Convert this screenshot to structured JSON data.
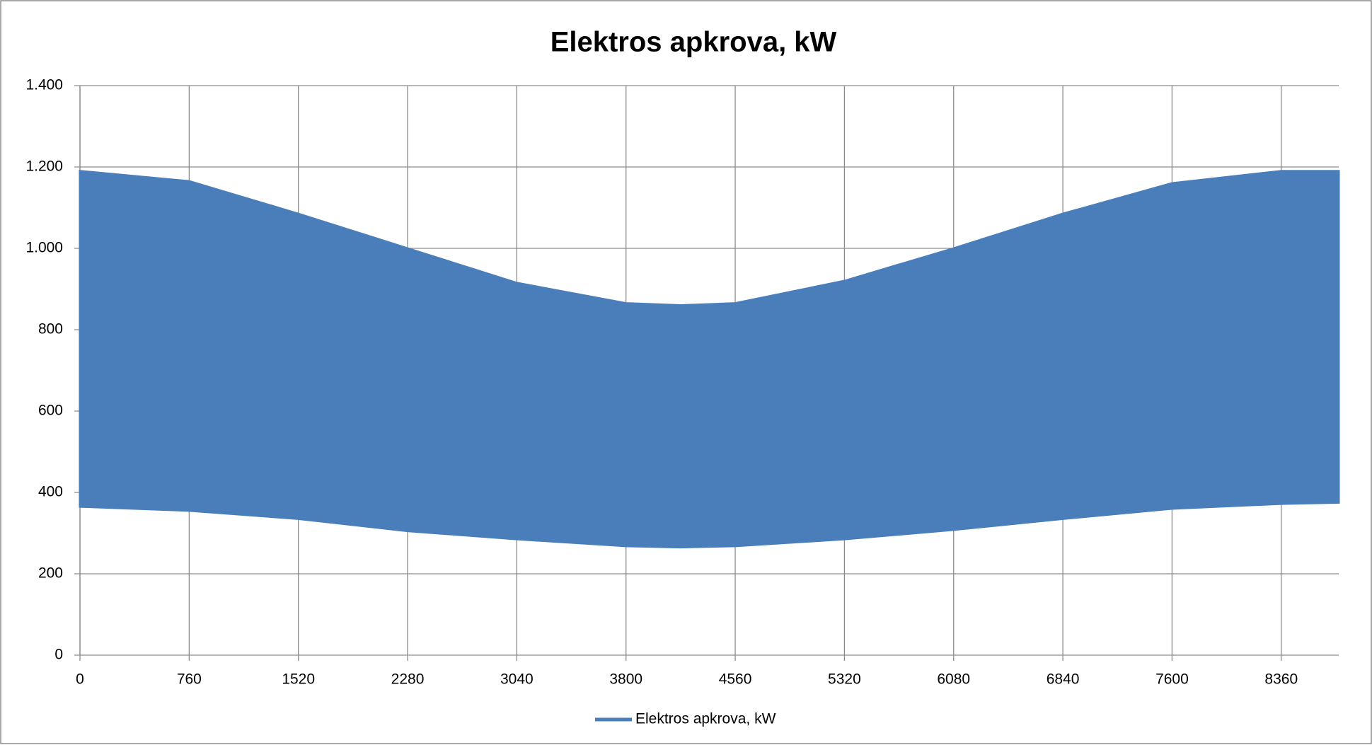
{
  "chart_data": {
    "type": "band",
    "title": "Elektros apkrova, kW",
    "series": [
      {
        "name": "Elektros apkrova, kW",
        "color": "#4a7ebb",
        "x": [
          0,
          760,
          1520,
          2280,
          3040,
          3800,
          4180,
          4560,
          5320,
          6080,
          6840,
          7600,
          8360,
          8760
        ],
        "values": [
          1190,
          1165,
          1085,
          1000,
          915,
          865,
          860,
          865,
          920,
          1000,
          1085,
          1160,
          1190,
          1190
        ],
        "low": [
          365,
          355,
          335,
          305,
          285,
          268,
          265,
          268,
          285,
          308,
          335,
          360,
          372,
          375
        ]
      }
    ],
    "xlim": [
      0,
      8760
    ],
    "xticks": [
      0,
      760,
      1520,
      2280,
      3040,
      3800,
      4560,
      5320,
      6080,
      6840,
      7600,
      8360
    ],
    "ylim": [
      0,
      1400
    ],
    "yticks": [
      0,
      200,
      400,
      600,
      800,
      {
        "value": 1000,
        "label": "1.000"
      },
      {
        "value": 1200,
        "label": "1.200"
      },
      {
        "value": 1400,
        "label": "1.400"
      }
    ],
    "grid": true,
    "legend": "bottom"
  }
}
